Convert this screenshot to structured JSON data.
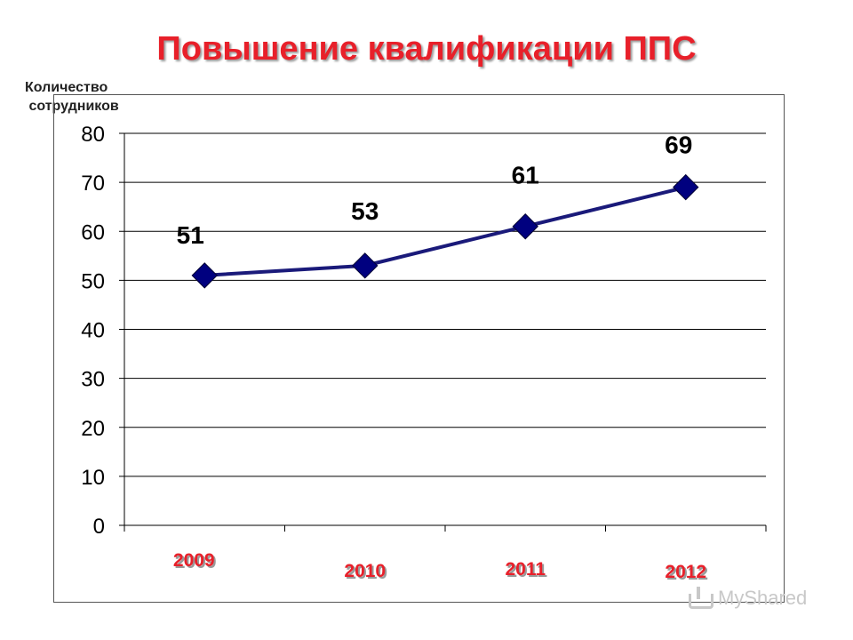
{
  "title": "Повышение квалификации ППС",
  "watermark": "MyShared",
  "watermark_icon": "share-icon",
  "colors": {
    "title": "#e8202a",
    "line": "#1a1a7a",
    "marker": "#00007f",
    "category_label": "#e8202a"
  },
  "chart_data": {
    "type": "line",
    "ylabel": "Количество\n сотрудников",
    "xlabel": "",
    "categories": [
      "2009",
      "2010",
      "2011",
      "2012"
    ],
    "series": [
      {
        "values": [
          51,
          53,
          61,
          69
        ]
      }
    ],
    "data_labels": [
      "51",
      "53",
      "61",
      "69"
    ],
    "ylim": [
      0,
      80
    ],
    "yticks": [
      0,
      10,
      20,
      30,
      40,
      50,
      60,
      70,
      80
    ],
    "grid": true,
    "legend": "none",
    "marker": "diamond"
  }
}
